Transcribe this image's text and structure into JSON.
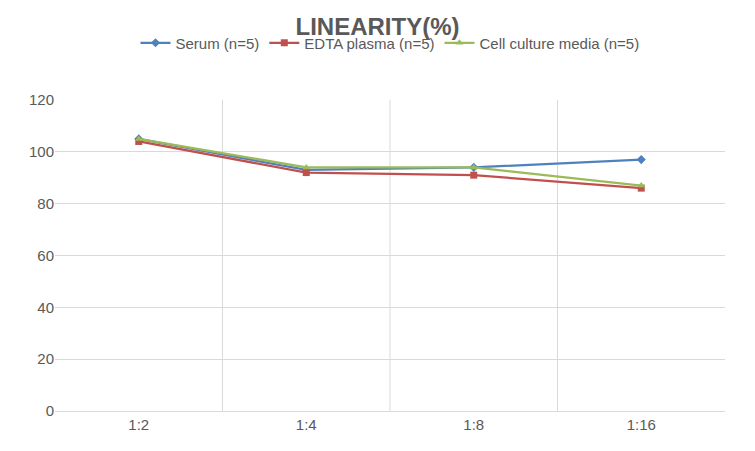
{
  "chart_data": {
    "type": "line",
    "title": "LINEARITY(%)",
    "categories": [
      "1:2",
      "1:4",
      "1:8",
      "1:16"
    ],
    "series": [
      {
        "name": "Serum (n=5)",
        "color": "#4f81bd",
        "marker": "diamond",
        "values": [
          105,
          93,
          94,
          97
        ]
      },
      {
        "name": "EDTA plasma (n=5)",
        "color": "#c0504d",
        "marker": "square",
        "values": [
          104,
          92,
          91,
          86
        ]
      },
      {
        "name": "Cell culture media (n=5)",
        "color": "#9bbb59",
        "marker": "triangle-up",
        "values": [
          105,
          94,
          94,
          87
        ]
      }
    ],
    "ylim": [
      0,
      120
    ],
    "yticks": [
      0,
      20,
      40,
      60,
      80,
      100,
      120
    ],
    "grid": true,
    "legend": "top"
  }
}
